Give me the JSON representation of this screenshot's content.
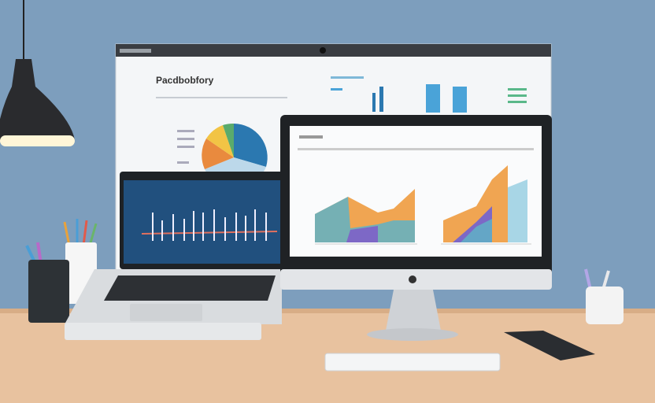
{
  "dashboard": {
    "title": "Pacdbobfory"
  }
}
